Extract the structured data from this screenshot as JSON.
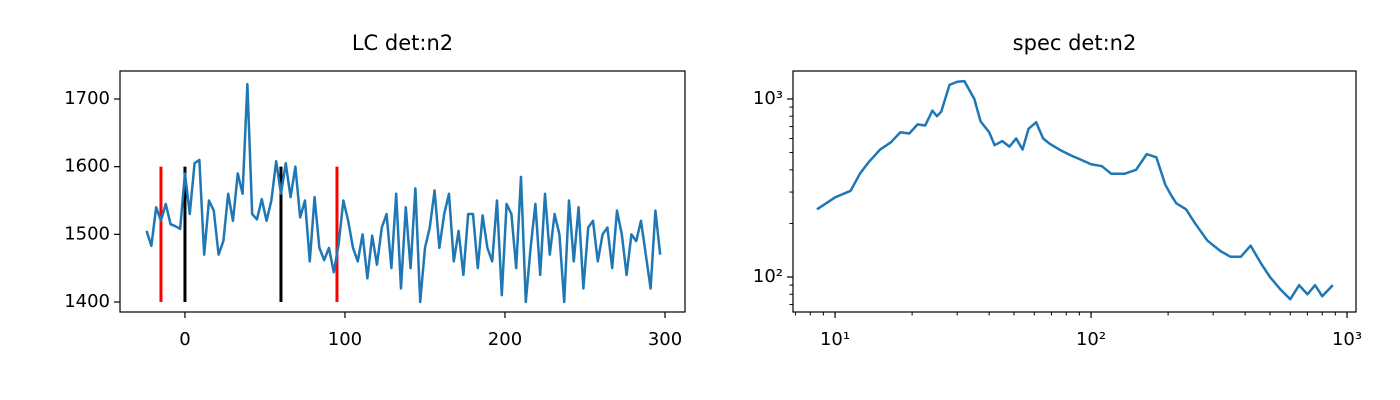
{
  "chart_data": [
    {
      "type": "line",
      "title": "LC det:n2",
      "color": "#1f77b4",
      "x": [
        -24,
        -21,
        -18,
        -15,
        -12,
        -9,
        -6,
        -3,
        0,
        3,
        6,
        9,
        12,
        15,
        18,
        21,
        24,
        27,
        30,
        33,
        36,
        39,
        42,
        45,
        48,
        51,
        54,
        57,
        60,
        63,
        66,
        69,
        72,
        75,
        78,
        81,
        84,
        87,
        90,
        93,
        96,
        99,
        102,
        105,
        108,
        111,
        114,
        117,
        120,
        123,
        126,
        129,
        132,
        135,
        138,
        141,
        144,
        147,
        150,
        153,
        156,
        159,
        162,
        165,
        168,
        171,
        174,
        177,
        180,
        183,
        186,
        189,
        192,
        195,
        198,
        201,
        204,
        207,
        210,
        213,
        216,
        219,
        222,
        225,
        228,
        231,
        234,
        237,
        240,
        243,
        246,
        249,
        252,
        255,
        258,
        261,
        264,
        267,
        270,
        273,
        276,
        279,
        282,
        285,
        288,
        291,
        294,
        297
      ],
      "values": [
        1505,
        1483,
        1540,
        1520,
        1545,
        1515,
        1512,
        1508,
        1590,
        1530,
        1605,
        1610,
        1470,
        1550,
        1535,
        1470,
        1490,
        1560,
        1520,
        1590,
        1560,
        1722,
        1530,
        1522,
        1552,
        1520,
        1550,
        1608,
        1560,
        1605,
        1555,
        1600,
        1525,
        1550,
        1460,
        1555,
        1480,
        1462,
        1480,
        1444,
        1485,
        1550,
        1520,
        1480,
        1460,
        1500,
        1435,
        1498,
        1455,
        1510,
        1530,
        1450,
        1560,
        1420,
        1540,
        1450,
        1568,
        1400,
        1480,
        1510,
        1565,
        1480,
        1530,
        1560,
        1460,
        1505,
        1440,
        1530,
        1530,
        1450,
        1528,
        1480,
        1460,
        1550,
        1410,
        1545,
        1530,
        1450,
        1585,
        1400,
        1480,
        1545,
        1440,
        1560,
        1470,
        1530,
        1500,
        1400,
        1550,
        1460,
        1540,
        1420,
        1510,
        1520,
        1460,
        1500,
        1510,
        1450,
        1535,
        1500,
        1440,
        1500,
        1490,
        1520,
        1470,
        1420,
        1535,
        1470
      ],
      "vlines": [
        {
          "x": -15,
          "ymin": 1400,
          "ymax": 1600,
          "color": "#ff0000"
        },
        {
          "x": 0,
          "ymin": 1400,
          "ymax": 1600,
          "color": "#000000"
        },
        {
          "x": 60,
          "ymin": 1400,
          "ymax": 1600,
          "color": "#000000"
        },
        {
          "x": 95,
          "ymin": 1400,
          "ymax": 1600,
          "color": "#ff0000"
        }
      ],
      "xlim": [
        -40.6,
        312.5
      ],
      "ylim": [
        1385.2,
        1741.4
      ],
      "xticks": [
        0,
        100,
        200,
        300
      ],
      "yticks": [
        1400,
        1500,
        1600,
        1700
      ]
    },
    {
      "type": "line",
      "title": "spec det:n2",
      "color": "#1f77b4",
      "xscale": "log",
      "yscale": "log",
      "minor_ticks": true,
      "x": [
        8.5,
        10,
        11.5,
        12.5,
        13.5,
        15,
        16.5,
        18,
        19.5,
        21,
        22.5,
        24,
        25,
        26,
        28,
        30,
        32,
        35,
        37,
        40,
        42,
        45,
        48,
        51,
        54,
        57,
        61,
        65,
        69,
        72,
        77,
        84,
        90,
        100,
        110,
        120,
        135,
        150,
        165,
        180,
        195,
        205,
        215,
        235,
        255,
        285,
        320,
        350,
        385,
        420,
        460,
        500,
        550,
        600,
        650,
        700,
        750,
        800,
        880
      ],
      "values": [
        240,
        280,
        305,
        380,
        440,
        520,
        570,
        650,
        640,
        720,
        710,
        860,
        800,
        850,
        1200,
        1250,
        1260,
        1000,
        750,
        650,
        550,
        580,
        540,
        600,
        520,
        680,
        740,
        600,
        560,
        540,
        510,
        480,
        460,
        430,
        420,
        380,
        380,
        400,
        490,
        470,
        330,
        290,
        260,
        240,
        200,
        160,
        140,
        130,
        130,
        150,
        120,
        100,
        85,
        75,
        90,
        80,
        90,
        78,
        90
      ],
      "xlim": [
        6.85,
        1084
      ],
      "ylim": [
        63.6,
        1436
      ],
      "xticks": [
        {
          "value": 10,
          "label": "10¹"
        },
        {
          "value": 100,
          "label": "10²"
        },
        {
          "value": 1000,
          "label": "10³"
        }
      ],
      "yticks": [
        {
          "value": 100,
          "label": "10²"
        },
        {
          "value": 1000,
          "label": "10³"
        }
      ]
    }
  ]
}
